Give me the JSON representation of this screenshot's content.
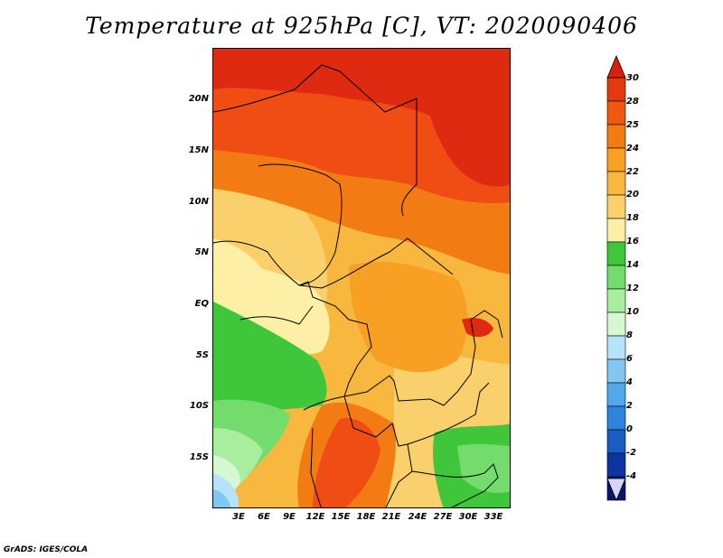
{
  "title": "Temperature at 925hPa [C], VT: 2020090406",
  "credit": "GrADS: IGES/COLA",
  "lat_labels": [
    "20N",
    "15N",
    "10N",
    "5N",
    "EQ",
    "5S",
    "10S",
    "15S"
  ],
  "lon_labels": [
    "3E",
    "6E",
    "9E",
    "12E",
    "15E",
    "18E",
    "21E",
    "24E",
    "27E",
    "30E",
    "33E"
  ],
  "colorbar": {
    "levels": [
      "30",
      "28",
      "25",
      "24",
      "22",
      "20",
      "18",
      "16",
      "14",
      "12",
      "10",
      "8",
      "6",
      "4",
      "2",
      "0",
      "-2",
      "-4"
    ],
    "colors": [
      "#e23a0e",
      "#f0580f",
      "#f37b13",
      "#f7a024",
      "#f8b840",
      "#fad06c",
      "#fdf0a6",
      "#3fc63b",
      "#73dc6d",
      "#a7ee9f",
      "#d6f8d0",
      "#b6e3fa",
      "#82c6f2",
      "#53a8ea",
      "#2e84dc",
      "#1a5cc4",
      "#0d35a0",
      "#08166e"
    ],
    "top_arrow_color": "#d8200b",
    "bottom_arrow_color": "#d8d4f6"
  },
  "map_colors": {
    "deep_red": "#dd2a10",
    "red_orange": "#ef4d14",
    "orange": "#f37b13",
    "light_orange": "#f7a024",
    "gold": "#f8b840",
    "yellow": "#fad06c",
    "pale_yellow": "#fdf0a6",
    "green": "#3fc63b",
    "mid_green": "#73dc6d",
    "light_green": "#a7ee9f",
    "pale_green": "#d6f8d0",
    "pale_blue": "#b6e3fa",
    "light_blue": "#82c6f2"
  }
}
